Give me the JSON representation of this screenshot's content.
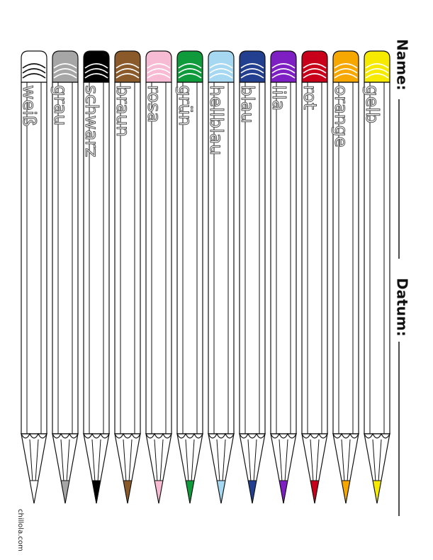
{
  "header": {
    "name_label": "Name:",
    "date_label": "Datum:"
  },
  "pencils": [
    {
      "label": "weiß",
      "color": "#ffffff"
    },
    {
      "label": "grau",
      "color": "#a6a6a6"
    },
    {
      "label": "schwarz",
      "color": "#000000"
    },
    {
      "label": "braun",
      "color": "#8b5a2b"
    },
    {
      "label": "rosa",
      "color": "#f7bcd4"
    },
    {
      "label": "grün",
      "color": "#0f9a3c"
    },
    {
      "label": "hellblau",
      "color": "#a7d8f2"
    },
    {
      "label": "blau",
      "color": "#233f8f"
    },
    {
      "label": "lila",
      "color": "#7e1fc4"
    },
    {
      "label": "rot",
      "color": "#c8001a"
    },
    {
      "label": "orange",
      "color": "#f7a800"
    },
    {
      "label": "gelb",
      "color": "#f5ea00"
    }
  ],
  "footer": {
    "logo": "chillola.com"
  }
}
